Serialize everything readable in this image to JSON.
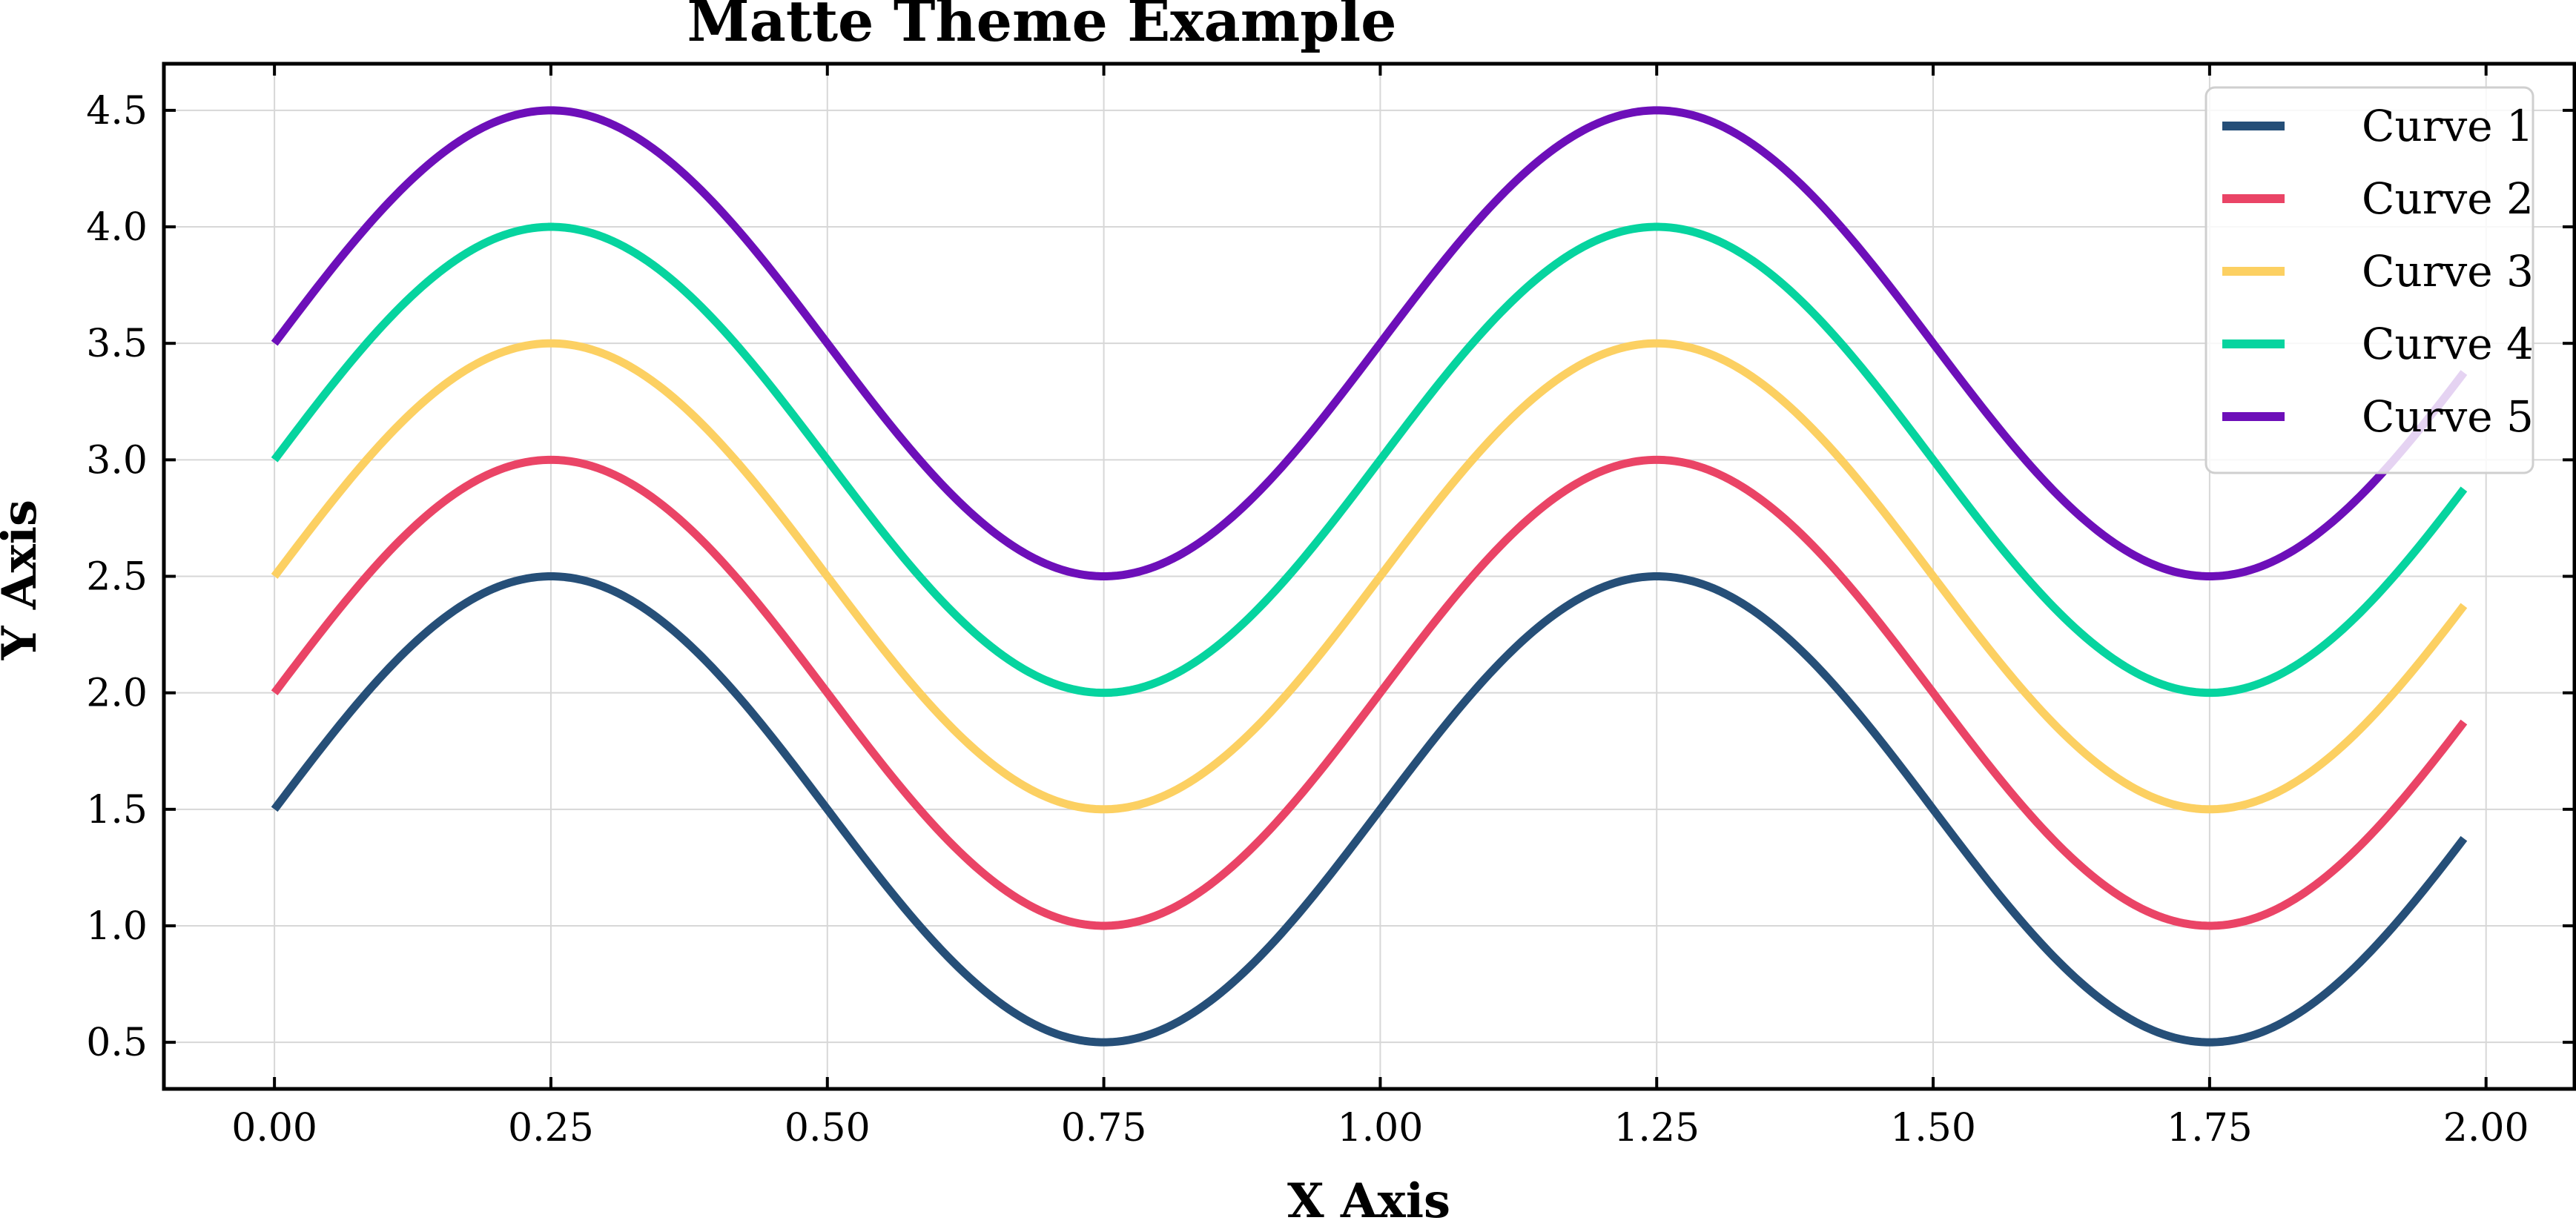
{
  "chart_data": {
    "type": "line",
    "title": "Matte Theme Example",
    "xlabel": "X Axis",
    "ylabel": "Y Axis",
    "xlim": [
      -0.1,
      2.08
    ],
    "ylim": [
      0.3,
      4.7
    ],
    "xticks": [
      0.0,
      0.25,
      0.5,
      0.75,
      1.0,
      1.25,
      1.5,
      1.75,
      2.0
    ],
    "xtick_labels": [
      "0.00",
      "0.25",
      "0.50",
      "0.75",
      "1.00",
      "1.25",
      "1.50",
      "1.75",
      "2.00"
    ],
    "yticks": [
      0.5,
      1.0,
      1.5,
      2.0,
      2.5,
      3.0,
      3.5,
      4.0,
      4.5
    ],
    "ytick_labels": [
      "0.5",
      "1.0",
      "1.5",
      "2.0",
      "2.5",
      "3.0",
      "3.5",
      "4.0",
      "4.5"
    ],
    "grid": true,
    "legend_position": "top-right",
    "function_form": "y = offset + sin(2*pi*x)",
    "x_range": [
      0.0,
      1.98
    ],
    "series": [
      {
        "name": "Curve 1",
        "color": "#264f78",
        "offset": 1.5
      },
      {
        "name": "Curve 2",
        "color": "#ea4466",
        "offset": 2.0
      },
      {
        "name": "Curve 3",
        "color": "#fcd062",
        "offset": 2.5
      },
      {
        "name": "Curve 4",
        "color": "#06d49f",
        "offset": 3.0
      },
      {
        "name": "Curve 5",
        "color": "#6d0fb9",
        "offset": 3.5
      }
    ]
  }
}
